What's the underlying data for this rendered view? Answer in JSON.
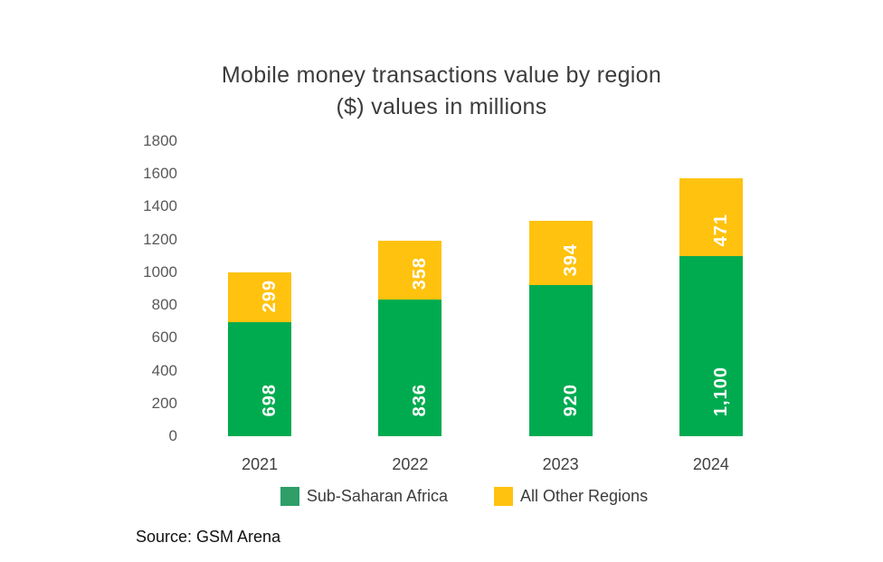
{
  "chart_data": {
    "type": "bar",
    "stacked": true,
    "title": "Mobile money transactions value by region",
    "subtitle": "($) values in millions",
    "xlabel": "",
    "ylabel": "",
    "categories": [
      "2021",
      "2022",
      "2023",
      "2024"
    ],
    "series": [
      {
        "name": "Sub-Saharan Africa",
        "color": "#00AB50",
        "legend_color": "#2F9E68",
        "values": [
          698,
          836,
          920,
          1100
        ],
        "labels": [
          "698",
          "836",
          "920",
          "1,100"
        ]
      },
      {
        "name": "All Other Regions",
        "color": "#FFC20E",
        "legend_color": "#FFC20E",
        "values": [
          299,
          358,
          394,
          471
        ],
        "labels": [
          "299",
          "358",
          "394",
          "471"
        ]
      }
    ],
    "ylim": [
      0,
      1800
    ],
    "yticks": [
      0,
      200,
      400,
      600,
      800,
      1000,
      1200,
      1400,
      1600,
      1800
    ],
    "grid": false,
    "legend_position": "bottom",
    "value_label_color": "#FFFFFF",
    "source": "Source: GSM Arena"
  }
}
